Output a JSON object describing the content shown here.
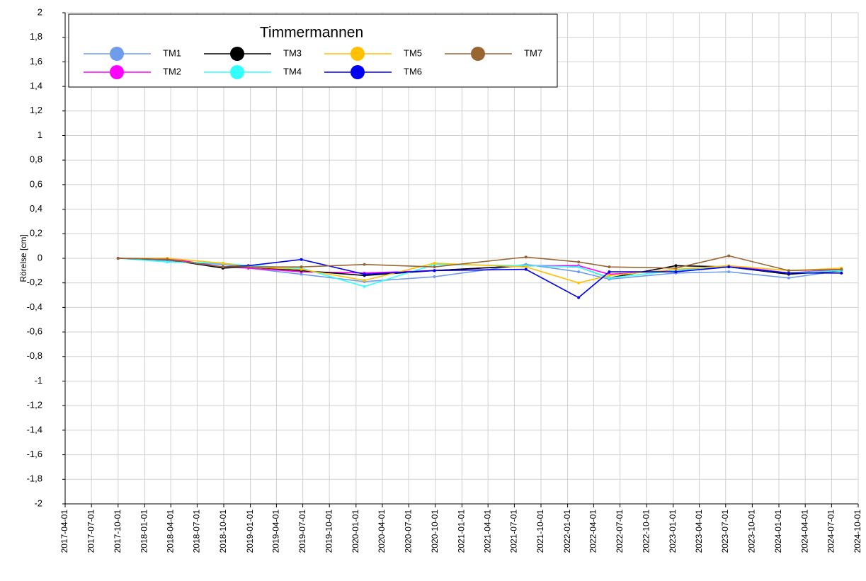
{
  "chart_data": {
    "type": "line",
    "legend_title": "Timmermannen",
    "y_label": "Rörelse [cm]",
    "x": [
      "2017-10-01",
      "2018-03-20",
      "2018-09-28",
      "2018-12-25",
      "2019-06-26",
      "2020-01-30",
      "2020-09-28",
      "2021-08-10",
      "2022-02-08",
      "2022-05-25",
      "2023-01-10",
      "2023-07-12",
      "2024-02-04",
      "2024-08-04"
    ],
    "series": [
      {
        "name": "TM1",
        "color": "#6f9ceb",
        "values": [
          0,
          -0.02,
          -0.05,
          -0.08,
          -0.13,
          -0.19,
          -0.15,
          -0.05,
          -0.11,
          -0.17,
          -0.12,
          -0.11,
          -0.16,
          -0.1
        ]
      },
      {
        "name": "TM2",
        "color": "#ff00ff",
        "values": [
          0,
          0,
          -0.07,
          -0.08,
          -0.11,
          -0.12,
          -0.1,
          -0.06,
          -0.06,
          -0.13,
          -0.1,
          -0.06,
          -0.12,
          -0.09
        ]
      },
      {
        "name": "TM3",
        "color": "#000000",
        "values": [
          0,
          -0.01,
          -0.08,
          -0.07,
          -0.1,
          -0.14,
          -0.1,
          -0.06,
          -0.07,
          -0.16,
          -0.06,
          -0.07,
          -0.13,
          -0.1
        ]
      },
      {
        "name": "TM4",
        "color": "#33ffff",
        "values": [
          0,
          -0.03,
          -0.04,
          -0.06,
          -0.08,
          -0.23,
          -0.05,
          -0.06,
          -0.07,
          -0.16,
          -0.1,
          -0.07,
          -0.12,
          -0.1
        ]
      },
      {
        "name": "TM5",
        "color": "#ffc000",
        "values": [
          0,
          0,
          -0.04,
          -0.07,
          -0.09,
          -0.18,
          -0.04,
          -0.07,
          -0.2,
          -0.14,
          -0.09,
          -0.06,
          -0.1,
          -0.08
        ]
      },
      {
        "name": "TM6",
        "color": "#0000ee",
        "values": [
          0,
          -0.01,
          -0.07,
          -0.06,
          -0.01,
          -0.13,
          -0.1,
          -0.09,
          -0.32,
          -0.11,
          -0.11,
          -0.07,
          -0.12,
          -0.12
        ]
      },
      {
        "name": "TM7",
        "color": "#996633",
        "values": [
          0,
          -0.01,
          -0.07,
          -0.07,
          -0.07,
          -0.05,
          -0.07,
          0.01,
          -0.03,
          -0.07,
          -0.08,
          0.02,
          -0.1,
          -0.09
        ]
      }
    ],
    "xlim": [
      "2017-04-01",
      "2024-10-01"
    ],
    "xticks": [
      "2017-04-01",
      "2017-07-01",
      "2017-10-01",
      "2018-01-01",
      "2018-04-01",
      "2018-07-01",
      "2018-10-01",
      "2019-01-01",
      "2019-04-01",
      "2019-07-01",
      "2019-10-01",
      "2020-01-01",
      "2020-04-01",
      "2020-07-01",
      "2020-10-01",
      "2021-01-01",
      "2021-04-01",
      "2021-07-01",
      "2021-10-01",
      "2022-01-01",
      "2022-04-01",
      "2022-07-01",
      "2022-10-01",
      "2023-01-01",
      "2023-04-01",
      "2023-07-01",
      "2023-10-01",
      "2024-01-01",
      "2024-04-01",
      "2024-07-01",
      "2024-10-01"
    ],
    "ylim": [
      -2,
      2
    ],
    "yticks": [
      -2,
      {
        "value": -1.8,
        "label": "-1,8"
      },
      {
        "value": -1.6,
        "label": "-1,6"
      },
      {
        "value": -1.4,
        "label": "-1,4"
      },
      {
        "value": -1.2,
        "label": "-1,2"
      },
      -1,
      {
        "value": -0.8,
        "label": "-0,8"
      },
      {
        "value": -0.6,
        "label": "-0,6"
      },
      {
        "value": -0.4,
        "label": "-0,4"
      },
      {
        "value": -0.2,
        "label": "-0,2"
      },
      0,
      {
        "value": 0.2,
        "label": "0,2"
      },
      {
        "value": 0.4,
        "label": "0,4"
      },
      {
        "value": 0.6,
        "label": "0,6"
      },
      {
        "value": 0.8,
        "label": "0,8"
      },
      1,
      {
        "value": 1.2,
        "label": "1,2"
      },
      {
        "value": 1.4,
        "label": "1,4"
      },
      {
        "value": 1.6,
        "label": "1,6"
      },
      {
        "value": 1.8,
        "label": "1,8"
      },
      2
    ],
    "grid": true
  }
}
